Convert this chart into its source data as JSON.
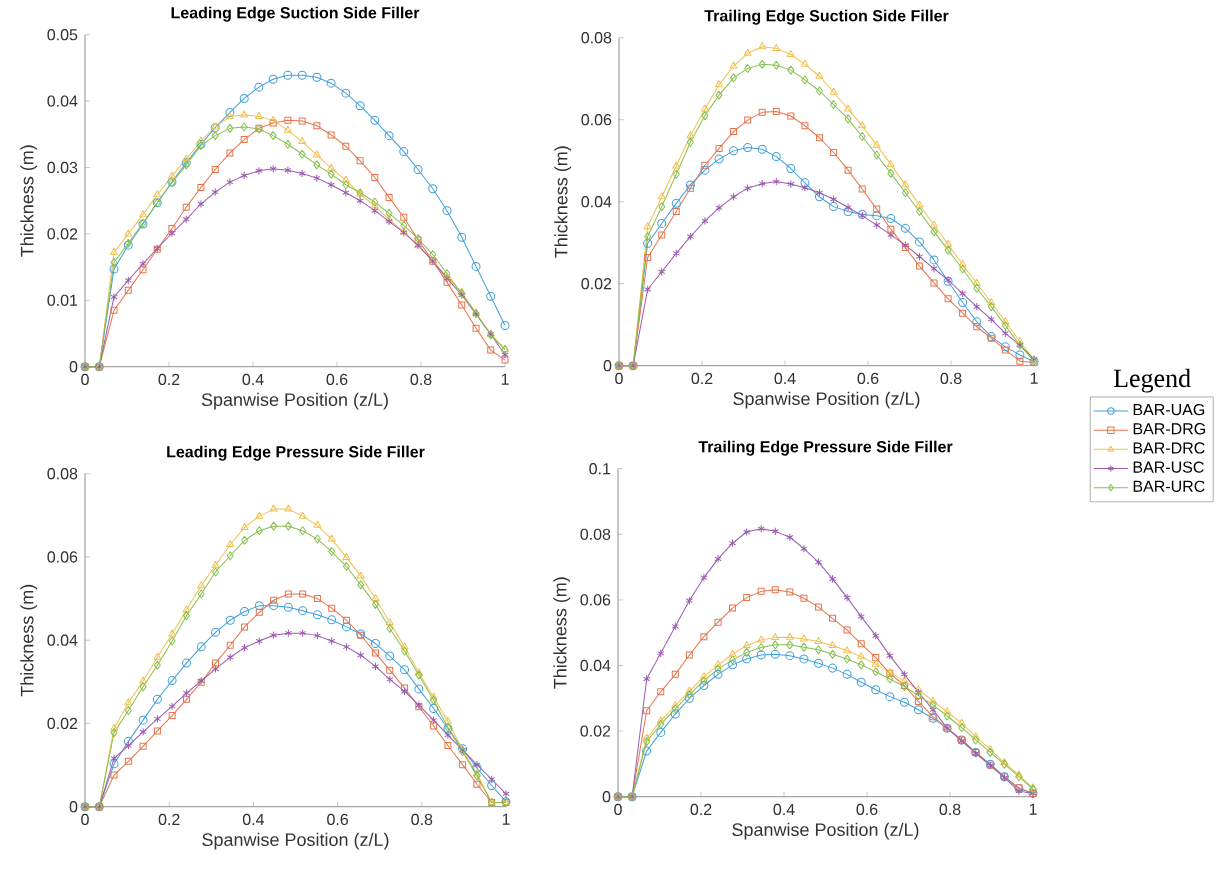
{
  "chart_data": [
    {
      "type": "line",
      "title": "Leading Edge Suction Side Filler",
      "xlabel": "Spanwise Position (z/L)",
      "ylabel": "Thickness (m)",
      "x": [
        0,
        0.034,
        0.069,
        0.103,
        0.138,
        0.172,
        0.207,
        0.241,
        0.276,
        0.31,
        0.345,
        0.379,
        0.414,
        0.448,
        0.483,
        0.517,
        0.552,
        0.586,
        0.621,
        0.655,
        0.69,
        0.724,
        0.759,
        0.793,
        0.828,
        0.862,
        0.897,
        0.931,
        0.966,
        1
      ],
      "xlim": [
        0,
        1
      ],
      "ylim": [
        0,
        0.05
      ],
      "xticks": [
        0,
        0.2,
        0.4,
        0.6,
        0.8,
        1
      ],
      "yticks": [
        0,
        0.01,
        0.02,
        0.03,
        0.04,
        0.05
      ],
      "series": [
        {
          "color": "#3f9fdc",
          "marker": "circle",
          "values": [
            0,
            0,
            0.0147,
            0.0183,
            0.0215,
            0.0247,
            0.0278,
            0.0307,
            0.0335,
            0.036,
            0.0383,
            0.0404,
            0.0421,
            0.0433,
            0.0439,
            0.0439,
            0.0436,
            0.0427,
            0.0412,
            0.0393,
            0.0371,
            0.0348,
            0.0324,
            0.0297,
            0.0268,
            0.0235,
            0.0195,
            0.0151,
            0.0106,
            0.0062
          ]
        },
        {
          "color": "#e8734a",
          "marker": "square",
          "values": [
            0,
            0,
            0.0085,
            0.0115,
            0.0146,
            0.0177,
            0.0208,
            0.024,
            0.027,
            0.0297,
            0.0322,
            0.0342,
            0.0359,
            0.0367,
            0.0371,
            0.037,
            0.0363,
            0.0349,
            0.0332,
            0.031,
            0.0285,
            0.0255,
            0.0225,
            0.0191,
            0.0159,
            0.0127,
            0.0093,
            0.0058,
            0.0025,
            0.001
          ]
        },
        {
          "color": "#f2c04e",
          "marker": "triangle",
          "values": [
            0,
            0,
            0.0172,
            0.02,
            0.0229,
            0.0259,
            0.0287,
            0.0313,
            0.034,
            0.0361,
            0.0377,
            0.0379,
            0.0377,
            0.0371,
            0.0356,
            0.0339,
            0.0319,
            0.0299,
            0.0281,
            0.026,
            0.0242,
            0.0222,
            0.0203,
            0.0182,
            0.0159,
            0.0135,
            0.0112,
            0.0081,
            0.0049,
            0.0026
          ]
        },
        {
          "color": "#9b5bb0",
          "marker": "cross",
          "values": [
            0,
            0,
            0.0105,
            0.013,
            0.0155,
            0.0178,
            0.0201,
            0.0222,
            0.0245,
            0.0263,
            0.0278,
            0.0288,
            0.0295,
            0.0298,
            0.0296,
            0.0291,
            0.0284,
            0.0274,
            0.0262,
            0.025,
            0.0235,
            0.0219,
            0.0202,
            0.0183,
            0.0159,
            0.0133,
            0.0108,
            0.0079,
            0.0049,
            0.0018
          ]
        },
        {
          "color": "#86c04f",
          "marker": "diamond",
          "values": [
            0,
            0,
            0.0157,
            0.0186,
            0.0216,
            0.0247,
            0.0277,
            0.0304,
            0.0333,
            0.0348,
            0.0359,
            0.0361,
            0.0358,
            0.0348,
            0.0335,
            0.032,
            0.0304,
            0.029,
            0.0274,
            0.0262,
            0.0248,
            0.0231,
            0.0213,
            0.0193,
            0.0169,
            0.014,
            0.011,
            0.008,
            0.0048,
            0.0026
          ]
        }
      ]
    },
    {
      "type": "line",
      "title": "Trailing Edge Suction Side Filler",
      "xlabel": "Spanwise Position (z/L)",
      "ylabel": "Thickness (m)",
      "x": [
        0,
        0.034,
        0.069,
        0.103,
        0.138,
        0.172,
        0.207,
        0.241,
        0.276,
        0.31,
        0.345,
        0.379,
        0.414,
        0.448,
        0.483,
        0.517,
        0.552,
        0.586,
        0.621,
        0.655,
        0.69,
        0.724,
        0.759,
        0.793,
        0.828,
        0.862,
        0.897,
        0.931,
        0.966,
        1
      ],
      "xlim": [
        0,
        1
      ],
      "ylim": [
        0,
        0.08
      ],
      "xticks": [
        0,
        0.2,
        0.4,
        0.6,
        0.8,
        1
      ],
      "yticks": [
        0,
        0.02,
        0.04,
        0.06,
        0.08
      ],
      "series": [
        {
          "color": "#3f9fdc",
          "marker": "circle",
          "values": [
            0,
            0,
            0.0298,
            0.0347,
            0.0396,
            0.0441,
            0.0477,
            0.0504,
            0.0524,
            0.0532,
            0.0528,
            0.051,
            0.0481,
            0.0446,
            0.0412,
            0.0388,
            0.0376,
            0.0369,
            0.0366,
            0.0359,
            0.0335,
            0.0302,
            0.0258,
            0.0206,
            0.0154,
            0.0107,
            0.0071,
            0.0046,
            0.0026,
            0.001
          ]
        },
        {
          "color": "#e8734a",
          "marker": "square",
          "values": [
            0,
            0,
            0.0264,
            0.0319,
            0.0376,
            0.0433,
            0.0489,
            0.053,
            0.0571,
            0.0599,
            0.0618,
            0.062,
            0.0609,
            0.0585,
            0.0556,
            0.052,
            0.0477,
            0.0431,
            0.0382,
            0.0333,
            0.0288,
            0.0243,
            0.0202,
            0.0163,
            0.0128,
            0.0095,
            0.0067,
            0.0038,
            0.0011,
            0.0008
          ]
        },
        {
          "color": "#f2c04e",
          "marker": "triangle",
          "values": [
            0,
            0,
            0.0339,
            0.0412,
            0.0487,
            0.0561,
            0.0626,
            0.0685,
            0.0731,
            0.0762,
            0.0778,
            0.0774,
            0.0759,
            0.0735,
            0.0706,
            0.0667,
            0.0626,
            0.0585,
            0.0538,
            0.0491,
            0.0441,
            0.0392,
            0.0343,
            0.0296,
            0.0247,
            0.0201,
            0.0154,
            0.0107,
            0.0059,
            0.0014
          ]
        },
        {
          "color": "#9b5bb0",
          "marker": "cross",
          "values": [
            0,
            0,
            0.0186,
            0.0229,
            0.0274,
            0.0315,
            0.0353,
            0.0385,
            0.0412,
            0.0433,
            0.0444,
            0.0449,
            0.0443,
            0.0434,
            0.0422,
            0.0406,
            0.0386,
            0.0366,
            0.0343,
            0.0319,
            0.0294,
            0.0266,
            0.0237,
            0.0209,
            0.0176,
            0.0144,
            0.0113,
            0.0079,
            0.005,
            0.0016
          ]
        },
        {
          "color": "#86c04f",
          "marker": "diamond",
          "values": [
            0,
            0,
            0.0315,
            0.0388,
            0.0467,
            0.0545,
            0.061,
            0.066,
            0.0702,
            0.0725,
            0.0735,
            0.0733,
            0.0721,
            0.0697,
            0.067,
            0.0637,
            0.0602,
            0.0559,
            0.0514,
            0.0469,
            0.0422,
            0.0376,
            0.0327,
            0.0282,
            0.0236,
            0.0189,
            0.0144,
            0.0098,
            0.005,
            0.0011
          ]
        }
      ]
    },
    {
      "type": "line",
      "title": "Leading Edge Pressure Side Filler",
      "xlabel": "Spanwise Position (z/L)",
      "ylabel": "Thickness (m)",
      "x": [
        0,
        0.034,
        0.069,
        0.103,
        0.138,
        0.172,
        0.207,
        0.241,
        0.276,
        0.31,
        0.345,
        0.379,
        0.414,
        0.448,
        0.483,
        0.517,
        0.552,
        0.586,
        0.621,
        0.655,
        0.69,
        0.724,
        0.759,
        0.793,
        0.828,
        0.862,
        0.897,
        0.931,
        0.966,
        1
      ],
      "xlim": [
        0,
        1
      ],
      "ylim": [
        0,
        0.08
      ],
      "xticks": [
        0,
        0.2,
        0.4,
        0.6,
        0.8,
        1
      ],
      "yticks": [
        0,
        0.02,
        0.04,
        0.06,
        0.08
      ],
      "series": [
        {
          "color": "#3f9fdc",
          "marker": "circle",
          "values": [
            0,
            0,
            0.0103,
            0.0157,
            0.0208,
            0.0258,
            0.0303,
            0.0345,
            0.0384,
            0.0419,
            0.0448,
            0.0469,
            0.0483,
            0.0483,
            0.0479,
            0.0471,
            0.0461,
            0.0449,
            0.0432,
            0.0415,
            0.0392,
            0.0362,
            0.0329,
            0.0283,
            0.0236,
            0.0188,
            0.0139,
            0.0093,
            0.0051,
            0.0012
          ]
        },
        {
          "color": "#e8734a",
          "marker": "square",
          "values": [
            0,
            0,
            0.0076,
            0.0109,
            0.0145,
            0.0182,
            0.0219,
            0.0258,
            0.0299,
            0.0345,
            0.0388,
            0.0432,
            0.0467,
            0.0496,
            0.0511,
            0.0511,
            0.05,
            0.0477,
            0.0448,
            0.0412,
            0.0369,
            0.0328,
            0.0285,
            0.024,
            0.0194,
            0.0147,
            0.0101,
            0.0054,
            0.001,
            0.001
          ]
        },
        {
          "color": "#f2c04e",
          "marker": "triangle",
          "values": [
            0,
            0,
            0.0188,
            0.025,
            0.0302,
            0.0359,
            0.0415,
            0.0473,
            0.0531,
            0.058,
            0.063,
            0.0671,
            0.0698,
            0.0715,
            0.0715,
            0.0698,
            0.0676,
            0.0643,
            0.0599,
            0.0554,
            0.05,
            0.0442,
            0.0384,
            0.0322,
            0.0263,
            0.0205,
            0.0136,
            0.0079,
            0.001,
            0.001
          ]
        },
        {
          "color": "#9b5bb0",
          "marker": "cross",
          "values": [
            0,
            0,
            0.0116,
            0.0147,
            0.018,
            0.0211,
            0.0241,
            0.0273,
            0.0302,
            0.0331,
            0.0359,
            0.0382,
            0.0398,
            0.0412,
            0.0417,
            0.0417,
            0.0411,
            0.0398,
            0.0384,
            0.0364,
            0.0337,
            0.0306,
            0.0277,
            0.0244,
            0.0208,
            0.0172,
            0.0136,
            0.0101,
            0.0066,
            0.0031
          ]
        },
        {
          "color": "#86c04f",
          "marker": "diamond",
          "values": [
            0,
            0,
            0.0178,
            0.0231,
            0.0288,
            0.034,
            0.0398,
            0.0459,
            0.0511,
            0.0564,
            0.0603,
            0.064,
            0.0663,
            0.0674,
            0.0674,
            0.0663,
            0.0643,
            0.0613,
            0.0577,
            0.0533,
            0.0486,
            0.0428,
            0.0374,
            0.0316,
            0.0256,
            0.019,
            0.0132,
            0.0074,
            0.001,
            0.001
          ]
        }
      ]
    },
    {
      "type": "line",
      "title": "Trailing Edge Pressure Side Filler",
      "xlabel": "Spanwise Position (z/L)",
      "ylabel": "Thickness (m)",
      "x": [
        0,
        0.034,
        0.069,
        0.103,
        0.138,
        0.172,
        0.207,
        0.241,
        0.276,
        0.31,
        0.345,
        0.379,
        0.414,
        0.448,
        0.483,
        0.517,
        0.552,
        0.586,
        0.621,
        0.655,
        0.69,
        0.724,
        0.759,
        0.793,
        0.828,
        0.862,
        0.897,
        0.931,
        0.966,
        1
      ],
      "xlim": [
        0,
        1
      ],
      "ylim": [
        0,
        0.1
      ],
      "xticks": [
        0,
        0.2,
        0.4,
        0.6,
        0.8,
        1
      ],
      "yticks": [
        0,
        0.02,
        0.04,
        0.06,
        0.08,
        0.1
      ],
      "legend": "right",
      "legend_title": "Legend",
      "series": [
        {
          "name": "BAR-UAG",
          "color": "#3f9fdc",
          "marker": "circle",
          "values": [
            0,
            0,
            0.0139,
            0.0196,
            0.0252,
            0.03,
            0.0339,
            0.0373,
            0.0402,
            0.042,
            0.0432,
            0.0434,
            0.043,
            0.042,
            0.0407,
            0.0392,
            0.0373,
            0.0349,
            0.0326,
            0.0305,
            0.0288,
            0.0265,
            0.0239,
            0.0209,
            0.0173,
            0.0135,
            0.0099,
            0.0061,
            0.0025,
            0.001
          ]
        },
        {
          "name": "BAR-DRG",
          "color": "#e8734a",
          "marker": "square",
          "values": [
            0,
            0,
            0.0262,
            0.032,
            0.0373,
            0.0432,
            0.0488,
            0.0532,
            0.0575,
            0.0607,
            0.0626,
            0.0631,
            0.0624,
            0.0605,
            0.0578,
            0.0544,
            0.0508,
            0.0466,
            0.0424,
            0.0376,
            0.0339,
            0.029,
            0.0244,
            0.0209,
            0.0173,
            0.0135,
            0.0097,
            0.0061,
            0.0027,
            0.001
          ]
        },
        {
          "name": "BAR-DRC",
          "color": "#f2c04e",
          "marker": "triangle",
          "values": [
            0,
            0,
            0.0178,
            0.0231,
            0.0278,
            0.0322,
            0.0366,
            0.0402,
            0.0434,
            0.0461,
            0.0478,
            0.0485,
            0.0486,
            0.0481,
            0.0473,
            0.0461,
            0.0445,
            0.0427,
            0.0404,
            0.0379,
            0.0353,
            0.0326,
            0.0292,
            0.0259,
            0.0224,
            0.0183,
            0.0144,
            0.0104,
            0.0066,
            0.0027
          ]
        },
        {
          "name": "BAR-USC",
          "color": "#9b5bb0",
          "marker": "cross",
          "values": [
            0,
            0,
            0.0359,
            0.0437,
            0.0519,
            0.0598,
            0.0668,
            0.0725,
            0.0773,
            0.0807,
            0.0817,
            0.0809,
            0.0791,
            0.0756,
            0.0715,
            0.0664,
            0.0607,
            0.0549,
            0.0491,
            0.043,
            0.0373,
            0.0318,
            0.0265,
            0.0209,
            0.017,
            0.0132,
            0.0095,
            0.0058,
            0.0017,
            0.001
          ]
        },
        {
          "name": "BAR-URC",
          "color": "#86c04f",
          "marker": "diamond",
          "values": [
            0,
            0,
            0.0168,
            0.0221,
            0.0268,
            0.0312,
            0.0353,
            0.0389,
            0.0417,
            0.044,
            0.0455,
            0.0463,
            0.0463,
            0.0456,
            0.0448,
            0.0434,
            0.042,
            0.0402,
            0.0381,
            0.0359,
            0.0336,
            0.0308,
            0.028,
            0.0246,
            0.0211,
            0.0173,
            0.0135,
            0.0099,
            0.0061,
            0.0023
          ]
        }
      ]
    }
  ]
}
